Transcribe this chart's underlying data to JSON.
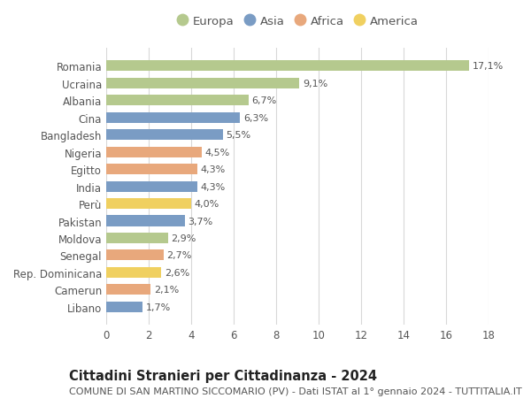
{
  "categories": [
    "Romania",
    "Ucraina",
    "Albania",
    "Cina",
    "Bangladesh",
    "Nigeria",
    "Egitto",
    "India",
    "Perù",
    "Pakistan",
    "Moldova",
    "Senegal",
    "Rep. Dominicana",
    "Camerun",
    "Libano"
  ],
  "values": [
    17.1,
    9.1,
    6.7,
    6.3,
    5.5,
    4.5,
    4.3,
    4.3,
    4.0,
    3.7,
    2.9,
    2.7,
    2.6,
    2.1,
    1.7
  ],
  "labels": [
    "17,1%",
    "9,1%",
    "6,7%",
    "6,3%",
    "5,5%",
    "4,5%",
    "4,3%",
    "4,3%",
    "4,0%",
    "3,7%",
    "2,9%",
    "2,7%",
    "2,6%",
    "2,1%",
    "1,7%"
  ],
  "regions": [
    "Europa",
    "Europa",
    "Europa",
    "Asia",
    "Asia",
    "Africa",
    "Africa",
    "Asia",
    "America",
    "Asia",
    "Europa",
    "Africa",
    "America",
    "Africa",
    "Asia"
  ],
  "region_colors": {
    "Europa": "#b5c98e",
    "Asia": "#7a9cc4",
    "Africa": "#e8a87c",
    "America": "#f0d060"
  },
  "legend_order": [
    "Europa",
    "Asia",
    "Africa",
    "America"
  ],
  "title": "Cittadini Stranieri per Cittadinanza - 2024",
  "subtitle": "COMUNE DI SAN MARTINO SICCOMARIO (PV) - Dati ISTAT al 1° gennaio 2024 - TUTTITALIA.IT",
  "xlim": [
    0,
    18
  ],
  "xticks": [
    0,
    2,
    4,
    6,
    8,
    10,
    12,
    14,
    16,
    18
  ],
  "background_color": "#ffffff",
  "grid_color": "#d8d8d8",
  "bar_height": 0.62,
  "title_fontsize": 10.5,
  "subtitle_fontsize": 8,
  "label_fontsize": 8,
  "tick_fontsize": 8.5,
  "legend_fontsize": 9.5,
  "text_color": "#555555"
}
